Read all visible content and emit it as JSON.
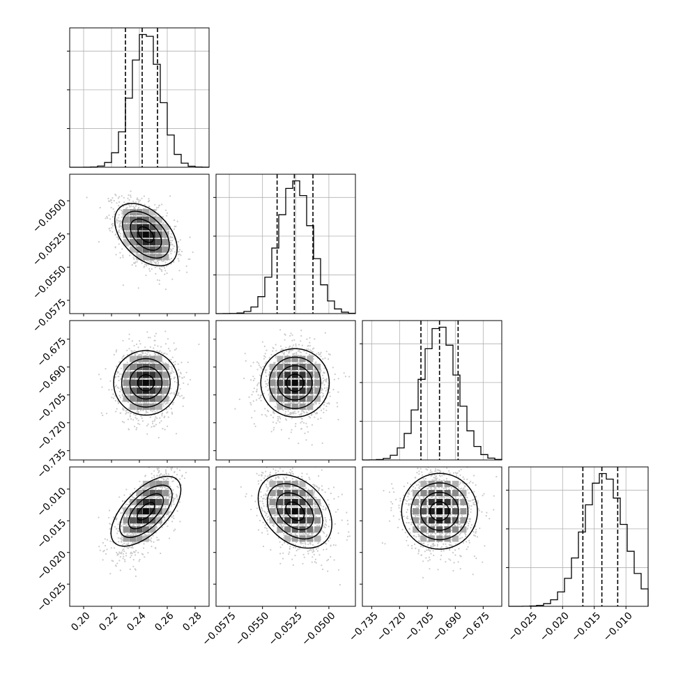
{
  "chart_data": {
    "type": "corner",
    "parameters": [
      {
        "range": [
          0.19,
          0.29
        ],
        "ticks": [
          0.2,
          0.22,
          0.24,
          0.26,
          0.28
        ],
        "tick_labels": [
          "0.20",
          "0.22",
          "0.24",
          "0.26",
          "0.28"
        ],
        "mean": 0.2447,
        "std": 0.0105,
        "quantiles": [
          0.23,
          0.242,
          0.253
        ]
      },
      {
        "range": [
          -0.0585,
          -0.048
        ],
        "ticks": [
          -0.0575,
          -0.055,
          -0.0525,
          -0.05
        ],
        "tick_labels": [
          "−0.0575",
          "−0.0550",
          "−0.0525",
          "−0.0500"
        ],
        "mean": -0.05255,
        "std": 0.00125,
        "quantiles": [
          -0.0539,
          -0.0526,
          -0.0512
        ]
      },
      {
        "range": [
          -0.74,
          -0.665
        ],
        "ticks": [
          -0.735,
          -0.72,
          -0.705,
          -0.69,
          -0.675
        ],
        "tick_labels": [
          "−0.735",
          "−0.720",
          "−0.705",
          "−0.690",
          "−0.675"
        ],
        "mean": -0.6985,
        "std": 0.0095,
        "quantiles": [
          -0.7085,
          -0.6985,
          -0.6885
        ]
      },
      {
        "range": [
          -0.0285,
          -0.0065
        ],
        "ticks": [
          -0.025,
          -0.02,
          -0.015,
          -0.01
        ],
        "tick_labels": [
          "−0.025",
          "−0.020",
          "−0.015",
          "−0.010"
        ],
        "mean": -0.0135,
        "std": 0.0032,
        "quantiles": [
          -0.0168,
          -0.0138,
          -0.0113
        ]
      }
    ],
    "correlations": [
      [
        0,
        1,
        -0.45
      ],
      [
        0,
        2,
        0.0
      ],
      [
        0,
        3,
        0.62
      ],
      [
        1,
        2,
        0.0
      ],
      [
        1,
        3,
        -0.35
      ],
      [
        2,
        3,
        0.0
      ]
    ],
    "histogram_bins": 20,
    "grid": true,
    "colors": {
      "points": "#bdbdbd",
      "lines": "#000000",
      "grid": "#b0b0b0"
    }
  }
}
